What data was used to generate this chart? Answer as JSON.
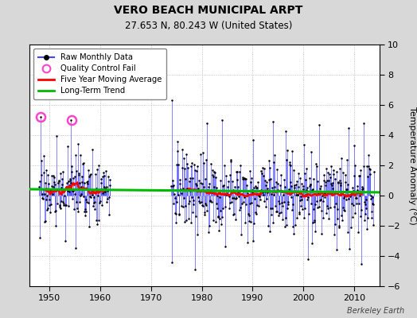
{
  "title": "VERO BEACH MUNICIPAL ARPT",
  "subtitle": "27.653 N, 80.243 W (United States)",
  "ylabel": "Temperature Anomaly (°C)",
  "watermark": "Berkeley Earth",
  "xlim": [
    1946,
    2015
  ],
  "ylim": [
    -6,
    10
  ],
  "yticks": [
    -6,
    -4,
    -2,
    0,
    2,
    4,
    6,
    8,
    10
  ],
  "xticks": [
    1950,
    1960,
    1970,
    1980,
    1990,
    2000,
    2010
  ],
  "bg_color": "#d8d8d8",
  "plot_bg_color": "#ffffff",
  "raw_color": "#4444ff",
  "raw_dot_color": "#000000",
  "qc_color": "#ff44cc",
  "moving_avg_color": "#ff0000",
  "trend_color": "#00bb00",
  "trend_intercept": 0.32,
  "trend_slope": -0.003,
  "seed": 17,
  "early_start": 1948.0,
  "early_end": 1961.9,
  "early_n": 170,
  "late_start": 1974.0,
  "late_end": 2013.9,
  "late_n": 480,
  "qc_fail_years": [
    1948.3,
    1954.3
  ],
  "qc_fail_values": [
    5.2,
    5.0
  ]
}
